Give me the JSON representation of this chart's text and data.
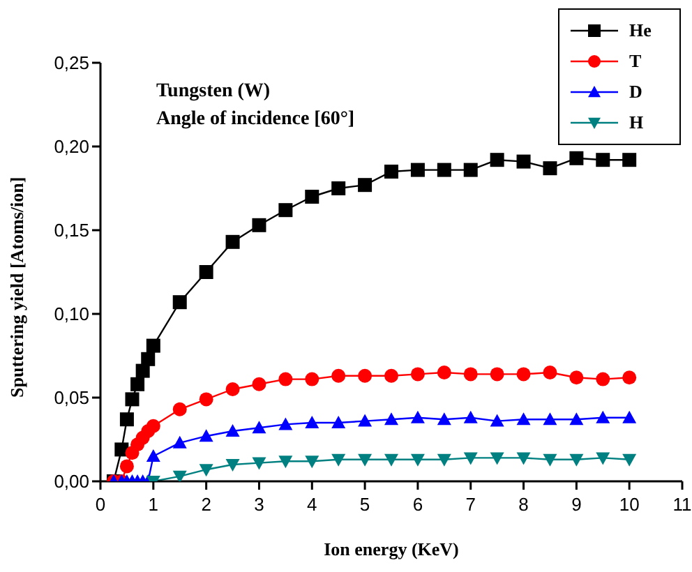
{
  "chart_data": {
    "type": "line",
    "xlabel": "Ion energy (KeV)",
    "ylabel": "Sputtering yield [Atoms/ion]",
    "annotations": [
      "Tungsten (W)",
      "Angle of incidence [60°]"
    ],
    "x": [
      0.25,
      0.4,
      0.5,
      0.6,
      0.7,
      0.8,
      0.9,
      1,
      1.5,
      2,
      2.5,
      3,
      3.5,
      4,
      4.5,
      5,
      5.5,
      6,
      6.5,
      7,
      7.5,
      8,
      8.5,
      9,
      9.5,
      10
    ],
    "series": [
      {
        "name": "He",
        "color": "#000000",
        "marker": "square",
        "values": [
          0,
          0.019,
          0.037,
          0.049,
          0.058,
          0.066,
          0.073,
          0.081,
          0.107,
          0.125,
          0.143,
          0.153,
          0.162,
          0.17,
          0.175,
          0.177,
          0.185,
          0.186,
          0.186,
          0.186,
          0.192,
          0.191,
          0.187,
          0.193,
          0.192,
          0.192
        ]
      },
      {
        "name": "T",
        "color": "#ff0000",
        "marker": "circle",
        "values": [
          0,
          0,
          0.009,
          0.017,
          0.022,
          0.026,
          0.03,
          0.033,
          0.043,
          0.049,
          0.055,
          0.058,
          0.061,
          0.061,
          0.063,
          0.063,
          0.063,
          0.064,
          0.065,
          0.064,
          0.064,
          0.064,
          0.065,
          0.062,
          0.061,
          0.062
        ]
      },
      {
        "name": "D",
        "color": "#0000ff",
        "marker": "triangle",
        "values": [
          0,
          0,
          0,
          0,
          0,
          0,
          0,
          0.015,
          0.023,
          0.027,
          0.03,
          0.032,
          0.034,
          0.035,
          0.035,
          0.036,
          0.037,
          0.038,
          0.037,
          0.038,
          0.036,
          0.037,
          0.037,
          0.037,
          0.038,
          0.038
        ]
      },
      {
        "name": "H",
        "color": "#008080",
        "marker": "triangle-down",
        "values": [
          null,
          null,
          null,
          null,
          null,
          null,
          null,
          0,
          0.003,
          0.007,
          0.01,
          0.011,
          0.012,
          0.012,
          0.013,
          0.013,
          0.013,
          0.013,
          0.013,
          0.014,
          0.014,
          0.014,
          0.013,
          0.013,
          0.014,
          0.013
        ]
      }
    ],
    "xlim": [
      0,
      11
    ],
    "xticks": [
      0,
      1,
      2,
      3,
      4,
      5,
      6,
      7,
      8,
      9,
      10,
      11
    ],
    "ylim": [
      0,
      0.25
    ],
    "yticks": [
      {
        "value": 0,
        "label": "0,00"
      },
      {
        "value": 0.05,
        "label": "0,05"
      },
      {
        "value": 0.1,
        "label": "0,10"
      },
      {
        "value": 0.15,
        "label": "0,15"
      },
      {
        "value": 0.2,
        "label": "0,20"
      },
      {
        "value": 0.25,
        "label": "0,25"
      }
    ],
    "legend": "top right",
    "grid": false,
    "line_style": "solid"
  }
}
